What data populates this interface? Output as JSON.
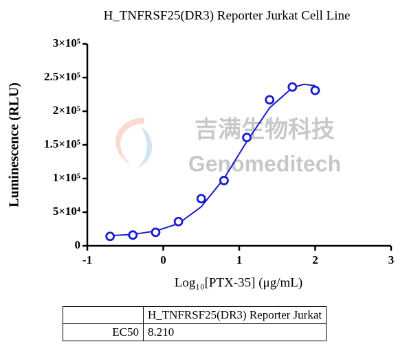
{
  "chart_data": {
    "type": "scatter",
    "title": "H_TNFRSF25(DR3) Reporter Jurkat Cell Line",
    "x_label": "Log₁₀[PTX-35] (μg/mL)",
    "y_label": "Luminescence (RLU)",
    "xlim": [
      -1,
      3
    ],
    "xticks": [
      -1,
      0,
      1,
      2,
      3
    ],
    "ylim": [
      0,
      300000
    ],
    "yticks": [
      0,
      {
        "value": 50000,
        "label": "5×10⁴"
      },
      {
        "value": 100000,
        "label": "1×10⁵"
      },
      {
        "value": 150000,
        "label": "1.5×10⁵"
      },
      {
        "value": 200000,
        "label": "2×10⁵"
      },
      {
        "value": 250000,
        "label": "2.5×10⁵"
      },
      {
        "value": 300000,
        "label": "3×10⁵"
      }
    ],
    "color": "#1a1ad0",
    "x": [
      -0.7,
      -0.4,
      -0.1,
      0.2,
      0.5,
      0.8,
      1.1,
      1.4,
      1.7,
      2.0
    ],
    "values": [
      14000,
      16000,
      20000,
      36000,
      70000,
      97000,
      161000,
      217000,
      236000,
      231000
    ],
    "fit": {
      "x": [
        -0.7,
        -0.4,
        -0.1,
        0.2,
        0.5,
        0.8,
        1.1,
        1.4,
        1.7,
        1.85,
        2.0
      ],
      "values": [
        15000,
        17000,
        22000,
        33000,
        58000,
        100000,
        155000,
        205000,
        235000,
        240000,
        238000
      ]
    },
    "watermark": [
      "吉满生物科技",
      "Genomeditech"
    ]
  },
  "table": {
    "rows": [
      [
        "",
        "H_TNFRSF25(DR3) Reporter Jurkat"
      ],
      [
        "EC50",
        "8.210"
      ]
    ]
  }
}
